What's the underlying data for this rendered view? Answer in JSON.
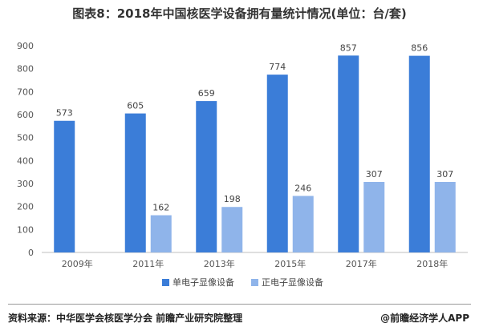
{
  "title": "图表8：2018年中国核医学设备拥有量统计情况(单位：台/套)",
  "chart_data": {
    "type": "bar",
    "categories": [
      "2009年",
      "2011年",
      "2013年",
      "2015年",
      "2017年",
      "2018年"
    ],
    "series": [
      {
        "name": "单电子显像设备",
        "values": [
          573,
          605,
          659,
          774,
          857,
          856
        ],
        "color": "#3B7DD8"
      },
      {
        "name": "正电子显像设备",
        "values": [
          null,
          162,
          198,
          246,
          307,
          307
        ],
        "color": "#8FB4EA"
      }
    ],
    "ylim": [
      0,
      900
    ],
    "yticks": [
      0,
      100,
      200,
      300,
      400,
      500,
      600,
      700,
      800,
      900
    ],
    "grid": false,
    "legend": "bottom"
  },
  "footer": {
    "source": "资料来源：中华医学会核医学分会 前瞻产业研究院整理",
    "brand": "@前瞻经济学人APP"
  }
}
